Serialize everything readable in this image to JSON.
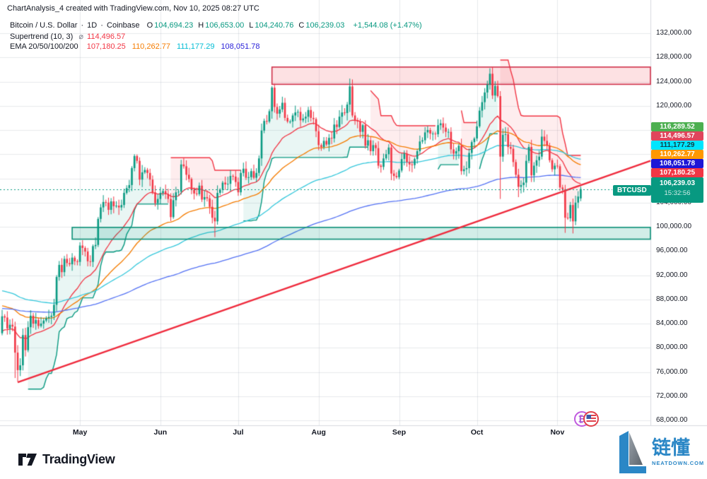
{
  "header": {
    "title": "ChartAnalysis_4 created with TradingView.com, Nov 10, 2025 08:27 UTC"
  },
  "legend": {
    "symbol": "Bitcoin / U.S. Dollar",
    "sep": "·",
    "interval": "1D",
    "exchange": "Coinbase",
    "ohlc": [
      {
        "k": "O",
        "v": "104,694.23"
      },
      {
        "k": "H",
        "v": "106,653.00"
      },
      {
        "k": "L",
        "v": "104,240.76"
      },
      {
        "k": "C",
        "v": "106,239.03"
      }
    ],
    "change": "+1,544.08 (+1.47%)",
    "supertrend": {
      "label": "Supertrend (10, 3)",
      "marker": "⌀",
      "value": "114,496.57",
      "value_color": "#f23645"
    },
    "ema": {
      "label": "EMA 20/50/100/200",
      "values": [
        {
          "text": "107,180.25",
          "color": "#f23645"
        },
        {
          "text": "110,262.77",
          "color": "#f57c00"
        },
        {
          "text": "111,177.29",
          "color": "#00bcd4"
        },
        {
          "text": "108,051.78",
          "color": "#2b22d9"
        }
      ]
    }
  },
  "price_axis": {
    "labels": [
      "132,000.00",
      "128,000.00",
      "124,000.00",
      "120,000.00",
      "116,000.00",
      "112,000.00",
      "108,000.00",
      "104,000.00",
      "100,000.00",
      "96,000.00",
      "92,000.00",
      "88,000.00",
      "84,000.00",
      "80,000.00",
      "76,000.00",
      "72,000.00",
      "68,000.00"
    ],
    "values_k": [
      132,
      128,
      124,
      120,
      116,
      112,
      108,
      104,
      100,
      96,
      92,
      88,
      84,
      80,
      76,
      72,
      68
    ]
  },
  "price_badges": [
    {
      "text": "116,289.52",
      "bg": "#4caf50",
      "fg": "#ffffff"
    },
    {
      "text": "114,496.57",
      "bg": "#e0455c",
      "fg": "#ffffff"
    },
    {
      "text": "111,177.29",
      "bg": "#00e5ff",
      "fg": "#103e46"
    },
    {
      "text": "110,262.77",
      "bg": "#ff9800",
      "fg": "#ffffff"
    },
    {
      "text": "108,051.78",
      "bg": "#1d16d6",
      "fg": "#ffffff"
    },
    {
      "text": "107,180.25",
      "bg": "#f23645",
      "fg": "#ffffff"
    }
  ],
  "symbol_badge": {
    "label": "BTCUSD",
    "price": "106,239.03",
    "countdown": "15:32:56",
    "bg": "#089981",
    "fg": "#ffffff"
  },
  "watermark": {
    "cn": "链懂",
    "site": "NEATDOWN.COM",
    "color": "#2b87c6"
  },
  "footer": {
    "brand": "TradingView"
  },
  "chart_data": {
    "type": "candlestick",
    "title": "Bitcoin / U.S. Dollar · 1D · Coinbase",
    "x_start": "2025-04-01",
    "x_end": "2025-11-10",
    "ylim_k": [
      66,
      133.5
    ],
    "y_ticks_k": [
      68,
      72,
      76,
      80,
      84,
      88,
      92,
      96,
      100,
      104,
      108,
      112,
      116,
      120,
      124,
      128,
      132
    ],
    "grid": true,
    "up_color": "#089981",
    "down_color": "#f23645",
    "first_open_k": 82.4,
    "closes_k": [
      85.2,
      85.0,
      83.2,
      83.8,
      83.5,
      79.2,
      76.3,
      77.1,
      82.1,
      79.6,
      83.4,
      85.3,
      84.0,
      84.6,
      83.6,
      84.0,
      84.5,
      84.9,
      85.1,
      85.3,
      87.1,
      91.7,
      93.7,
      92.5,
      94.7,
      94.0,
      93.8,
      94.9,
      94.3,
      94.2,
      96.9,
      96.5,
      95.9,
      94.3,
      94.2,
      96.8,
      97.0,
      101.3,
      103.2,
      104.1,
      104.0,
      102.8,
      104.2,
      103.4,
      103.5,
      103.2,
      103.6,
      105.6,
      106.4,
      106.9,
      109.7,
      111.7,
      110.9,
      107.8,
      109.0,
      109.4,
      108.9,
      107.8,
      105.7,
      103.9,
      104.6,
      105.6,
      105.9,
      105.4,
      104.6,
      101.6,
      104.4,
      105.7,
      105.8,
      110.3,
      110.0,
      108.6,
      107.9,
      106.1,
      105.5,
      105.4,
      106.8,
      104.5,
      104.9,
      104.7,
      103.3,
      101.5,
      100.9,
      105.6,
      106.1,
      107.3,
      107.0,
      107.1,
      108.4,
      108.3,
      107.4,
      105.7,
      108.9,
      109.6,
      108.1,
      108.2,
      109.2,
      108.1,
      108.9,
      111.3,
      115.9,
      117.5,
      117.4,
      119.1,
      123.0,
      119.8,
      118.7,
      119.4,
      120.5,
      118.0,
      117.4,
      117.4,
      118.4,
      118.9,
      119.0,
      117.6,
      117.9,
      118.2,
      119.3,
      118.0,
      117.8,
      115.8,
      113.5,
      113.2,
      114.2,
      113.6,
      114.7,
      114.6,
      116.9,
      116.5,
      118.2,
      118.9,
      118.8,
      120.2,
      123.2,
      118.4,
      117.5,
      117.4,
      115.7,
      116.8,
      113.4,
      114.3,
      112.5,
      113.5,
      113.0,
      110.1,
      109.9,
      111.3,
      112.0,
      113.1,
      108.8,
      108.4,
      108.2,
      109.3,
      111.2,
      112.1,
      110.7,
      110.3,
      110.2,
      111.2,
      112.5,
      114.1,
      114.3,
      115.6,
      116.0,
      115.4,
      115.4,
      115.3,
      116.8,
      117.1,
      116.4,
      115.7,
      115.7,
      112.8,
      112.1,
      112.5,
      113.4,
      109.2,
      109.5,
      109.7,
      112.2,
      114.0,
      114.6,
      116.6,
      119.2,
      120.6,
      122.2,
      123.5,
      125.3,
      121.7,
      123.3,
      121.6,
      111.6,
      115.2,
      115.3,
      113.2,
      112.9,
      110.7,
      108.6,
      106.6,
      106.9,
      107.3,
      110.9,
      113.2,
      108.5,
      110.1,
      111.0,
      111.6,
      114.9,
      114.2,
      113.4,
      111.0,
      109.5,
      110.1,
      110.0,
      106.5,
      106.2,
      101.5,
      101.4,
      103.6,
      100.9,
      104.0,
      105.0,
      106.24
    ],
    "wick_overrides_k": {
      "5": {
        "l": 75.0
      },
      "6": {
        "l": 74.4
      },
      "21": {
        "h": 92.0
      },
      "51": {
        "h": 112.0
      },
      "82": {
        "l": 98.3
      },
      "104": {
        "h": 123.25
      },
      "134": {
        "h": 124.5
      },
      "188": {
        "h": 126.2
      },
      "192": {
        "l": 104.6
      },
      "199": {
        "l": 104.9
      },
      "217": {
        "l": 99.0
      },
      "220": {
        "l": 98.9
      }
    },
    "last_candle_k": {
      "o": 104.69,
      "h": 106.65,
      "l": 104.24,
      "c": 106.24
    },
    "emas": [
      {
        "period": 20,
        "seed_k": 82.5,
        "color": "#f23645"
      },
      {
        "period": 50,
        "seed_k": 87.0,
        "color": "#f57c00"
      },
      {
        "period": 100,
        "seed_k": 89.5,
        "color": "#35c8dc"
      },
      {
        "period": 200,
        "seed_k": 86.5,
        "color": "#5472f4"
      }
    ],
    "supertrend": {
      "period": 10,
      "multiplier": 3,
      "up_color": "#089981",
      "down_color": "#f23645",
      "fill_alpha": 0.09
    },
    "zones": [
      {
        "name": "resistance",
        "top_k": 126.4,
        "bottom_k": 123.55,
        "start_index": 104,
        "fill": "rgba(242,54,69,0.15)",
        "border": "#cf3049"
      },
      {
        "name": "support",
        "top_k": 99.9,
        "bottom_k": 97.95,
        "start_index": 27,
        "fill": "rgba(8,153,129,0.18)",
        "border": "#0a8f77"
      }
    ],
    "trendline": {
      "start_index": 6,
      "start_k": 74.3,
      "right_edge_k": 110.9,
      "color": "#ef2b3d",
      "width": 2.5
    },
    "current_price_line": {
      "price_k": 106.239,
      "color": "#089981",
      "style": "dotted"
    },
    "months": [
      {
        "label": "May",
        "index": 30
      },
      {
        "label": "Jun",
        "index": 61
      },
      {
        "label": "Jul",
        "index": 91
      },
      {
        "label": "Aug",
        "index": 122
      },
      {
        "label": "Sep",
        "index": 153
      },
      {
        "label": "Oct",
        "index": 183
      },
      {
        "label": "Nov",
        "index": 214
      }
    ]
  }
}
